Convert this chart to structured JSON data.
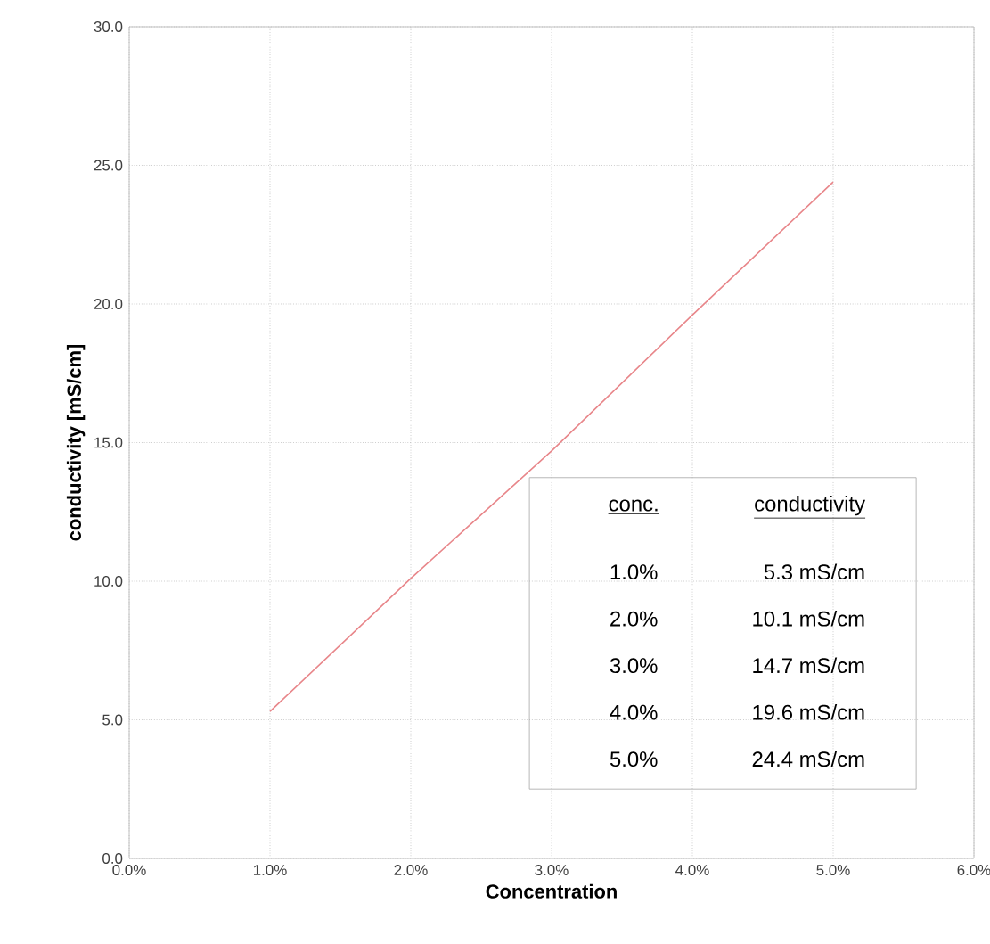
{
  "chart_data": {
    "type": "line",
    "xlabel": "Concentration",
    "ylabel": "conductivity [mS/cm]",
    "x": [
      1,
      2,
      3,
      4,
      5
    ],
    "series": [
      {
        "color": "#e8868a",
        "values": [
          5.3,
          10.1,
          14.7,
          19.6,
          24.4
        ]
      }
    ],
    "xlim": [
      0,
      6
    ],
    "xticks": [
      {
        "value": 0,
        "label": "0.0%"
      },
      {
        "value": 1,
        "label": "1.0%"
      },
      {
        "value": 2,
        "label": "2.0%"
      },
      {
        "value": 3,
        "label": "3.0%"
      },
      {
        "value": 4,
        "label": "4.0%"
      },
      {
        "value": 5,
        "label": "5.0%"
      },
      {
        "value": 6,
        "label": "6.0%"
      }
    ],
    "ylim": [
      0,
      30
    ],
    "yticks": [
      {
        "value": 0,
        "label": "0.0"
      },
      {
        "value": 5,
        "label": "5.0"
      },
      {
        "value": 10,
        "label": "10.0"
      },
      {
        "value": 15,
        "label": "15.0"
      },
      {
        "value": 20,
        "label": "20.0"
      },
      {
        "value": 25,
        "label": "25.0"
      },
      {
        "value": 30,
        "label": "30.0"
      }
    ],
    "grid": true,
    "marker": "none",
    "line_style": "solid",
    "annotations": [
      "conc.",
      "conductivity",
      "1.0%",
      "5.3 mS/cm",
      "2.0%",
      "10.1 mS/cm",
      "3.0%",
      "14.7 mS/cm",
      "4.0%",
      "19.6 mS/cm",
      "5.0%",
      "24.4 mS/cm"
    ]
  }
}
